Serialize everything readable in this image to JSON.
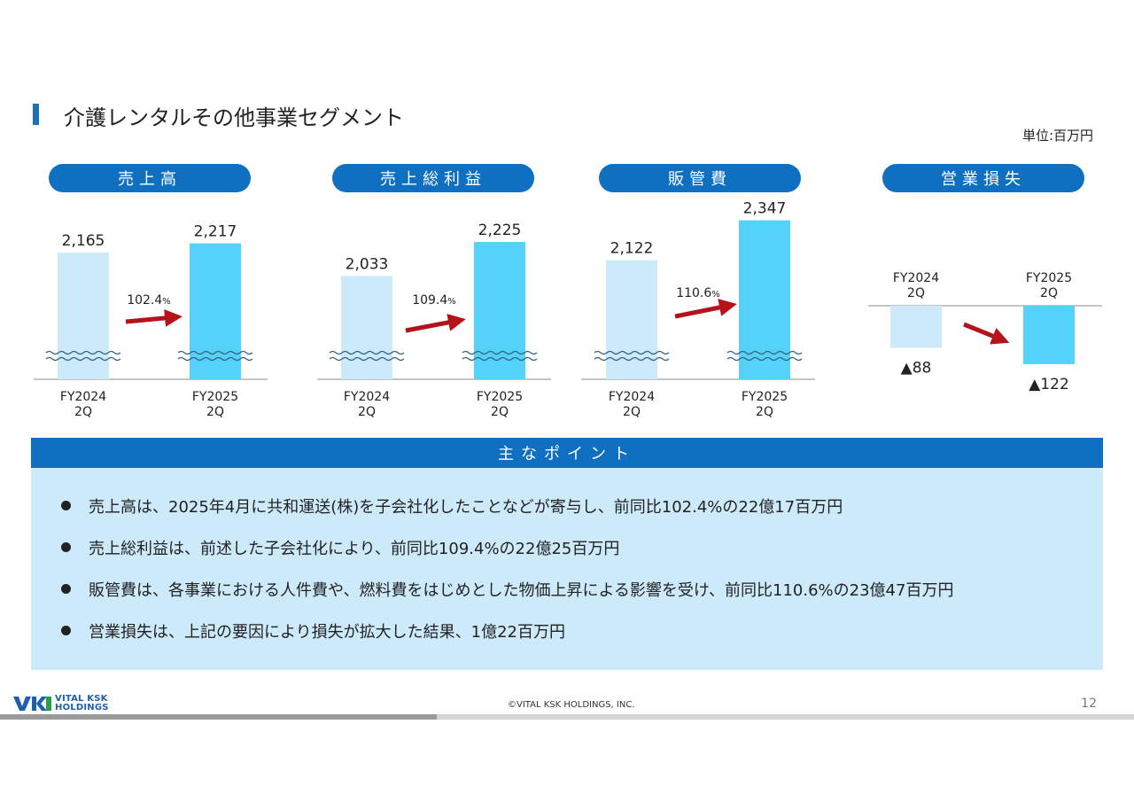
{
  "header": {
    "title": "介護レンタルその他事業セグメント",
    "unit": "単位:百万円"
  },
  "colors": {
    "accent": "#0f6fc0",
    "bar_prev": "#cdeafb",
    "bar_curr": "#55d2fb",
    "arrow": "#b5121b",
    "points_bg": "#cdeafb"
  },
  "chart_data": [
    {
      "type": "bar",
      "title": "売上高",
      "categories": [
        "FY2024\n2Q",
        "FY2025\n2Q"
      ],
      "values": [
        2165,
        2217
      ],
      "value_labels": [
        "2,165",
        "2,217"
      ],
      "change_label": "102.4",
      "change_unit": "%",
      "axis_break": true
    },
    {
      "type": "bar",
      "title": "売上総利益",
      "categories": [
        "FY2024\n2Q",
        "FY2025\n2Q"
      ],
      "values": [
        2033,
        2225
      ],
      "value_labels": [
        "2,033",
        "2,225"
      ],
      "change_label": "109.4",
      "change_unit": "%",
      "axis_break": true
    },
    {
      "type": "bar",
      "title": "販管費",
      "categories": [
        "FY2024\n2Q",
        "FY2025\n2Q"
      ],
      "values": [
        2122,
        2347
      ],
      "value_labels": [
        "2,122",
        "2,347"
      ],
      "change_label": "110.6",
      "change_unit": "%",
      "axis_break": true
    },
    {
      "type": "bar",
      "title": "営業損失",
      "categories": [
        "FY2024\n2Q",
        "FY2025\n2Q"
      ],
      "values": [
        -88,
        -122
      ],
      "value_labels": [
        "▲88",
        "▲122"
      ],
      "axis_break": false
    }
  ],
  "points": {
    "heading": "主なポイント",
    "items": [
      "売上高は、2025年4月に共和運送(株)を子会社化したことなどが寄与し、前同比102.4%の22億17百万円",
      "売上総利益は、前述した子会社化により、前同比109.4%の22億25百万円",
      "販管費は、各事業における人件費や、燃料費をはじめとした物価上昇による影響を受け、前同比110.6%の23億47百万円",
      "営業損失は、上記の要因により損失が拡大した結果、1億22百万円"
    ]
  },
  "footer": {
    "logo_line1": "VITAL KSK",
    "logo_line2": "HOLDINGS",
    "copyright": "©VITAL KSK HOLDINGS, INC.",
    "page_number": "12"
  }
}
